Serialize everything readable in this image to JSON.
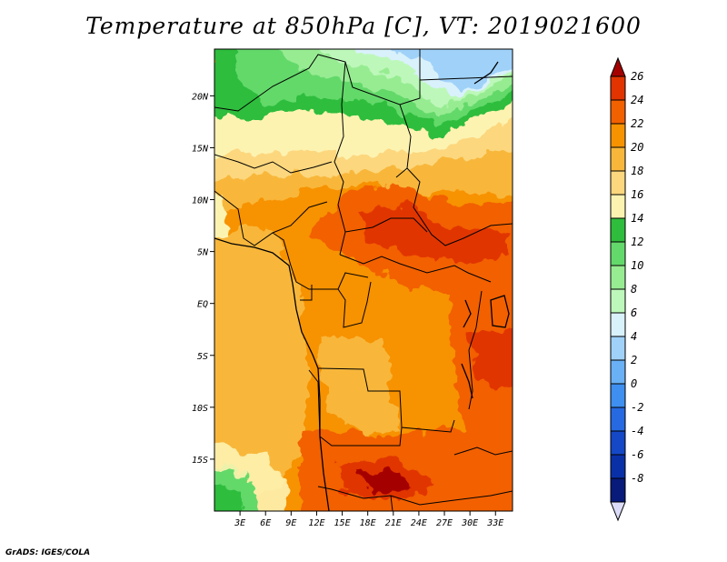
{
  "title": "Temperature at 850hPa [C], VT: 2019021600",
  "footer": "GrADS: IGES/COLA",
  "map": {
    "lat_labels": [
      "20N",
      "15N",
      "10N",
      "5N",
      "EQ",
      "5S",
      "10S",
      "15S"
    ],
    "lat_values": [
      20,
      15,
      10,
      5,
      0,
      -5,
      -10,
      -15
    ],
    "lon_labels": [
      "3E",
      "6E",
      "9E",
      "12E",
      "15E",
      "18E",
      "21E",
      "24E",
      "27E",
      "30E",
      "33E"
    ],
    "lon_values": [
      3,
      6,
      9,
      12,
      15,
      18,
      21,
      24,
      27,
      30,
      33
    ],
    "lon_range": [
      0,
      35
    ],
    "lat_range": [
      -20,
      24.5
    ]
  },
  "colorbar": {
    "labels": [
      "26",
      "24",
      "22",
      "20",
      "18",
      "16",
      "14",
      "12",
      "10",
      "8",
      "6",
      "4",
      "2",
      "0",
      "-2",
      "-4",
      "-6",
      "-8"
    ],
    "colors": [
      "#a50000",
      "#e13400",
      "#f26100",
      "#f79200",
      "#f8b73b",
      "#fcd77e",
      "#fdf3b1",
      "#2fbd3d",
      "#63d96b",
      "#97ec92",
      "#bdf8ba",
      "#d9f1fb",
      "#a0d2f9",
      "#6ab0f5",
      "#3e8ff0",
      "#2669e1",
      "#1548c6",
      "#0a30a8",
      "#081a7a",
      "#dcdcf8"
    ]
  }
}
